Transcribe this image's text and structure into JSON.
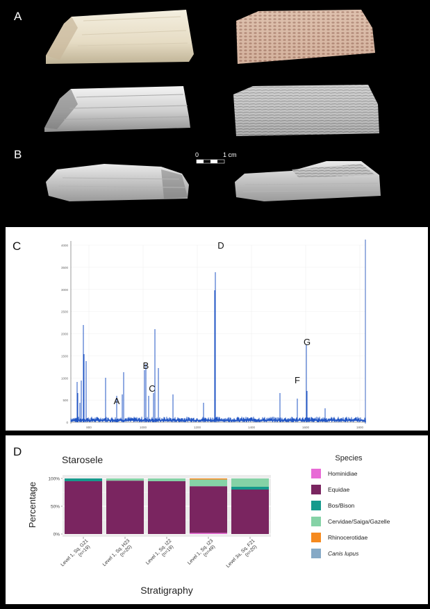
{
  "figure": {
    "panels": [
      "A",
      "B",
      "C",
      "D"
    ],
    "scale_bar": {
      "zero": "0",
      "end": "1 cm"
    }
  },
  "spectrum": {
    "peak_labels": [
      "A",
      "B",
      "C",
      "D",
      "F",
      "G"
    ],
    "y_ticks": [
      "4000",
      "3500",
      "3000",
      "2500",
      "2000",
      "1500",
      "1000",
      "500",
      "0"
    ],
    "x_ticks": [
      "800",
      "1000",
      "1200",
      "1400",
      "1600",
      "1800"
    ],
    "line_color": "#2155c4"
  },
  "chart_data": {
    "type": "bar",
    "title": "Starosele",
    "xlabel": "Stratigraphy",
    "ylabel": "Percentage",
    "y_ticks": [
      "0%",
      "50%",
      "100%"
    ],
    "ylim": [
      0,
      100
    ],
    "stacked": true,
    "legend_title": "Species",
    "legend_position": "right",
    "categories": [
      "Level 1, Sq. G21\n(n=19)",
      "Level 1, Sq. H23\n(n=20)",
      "Level 1, Sq. I22\n(n=19)",
      "Level 1, Sq. I23\n(n=49)",
      "Level 3a, Sq. F21\n(n=20)"
    ],
    "series": [
      {
        "name": "Hominidiae",
        "color": "#e86ad6",
        "values": [
          0,
          0,
          0,
          2,
          0
        ]
      },
      {
        "name": "Equidae",
        "color": "#7a2560",
        "values": [
          95,
          96,
          95,
          84,
          80
        ]
      },
      {
        "name": "Bos/Bison",
        "color": "#169a8c",
        "values": [
          5,
          0,
          0,
          0,
          5
        ]
      },
      {
        "name": "Cervidae/Saiga/Gazelle",
        "color": "#85d2a6",
        "values": [
          0,
          4,
          5,
          12,
          15
        ]
      },
      {
        "name": "Rhinocerotidae",
        "color": "#f58a1f",
        "values": [
          0,
          0,
          0,
          2,
          0
        ]
      },
      {
        "name": "Canis lupus",
        "color": "#85a9c6",
        "values": [
          0,
          0,
          0,
          0,
          0
        ]
      }
    ]
  }
}
